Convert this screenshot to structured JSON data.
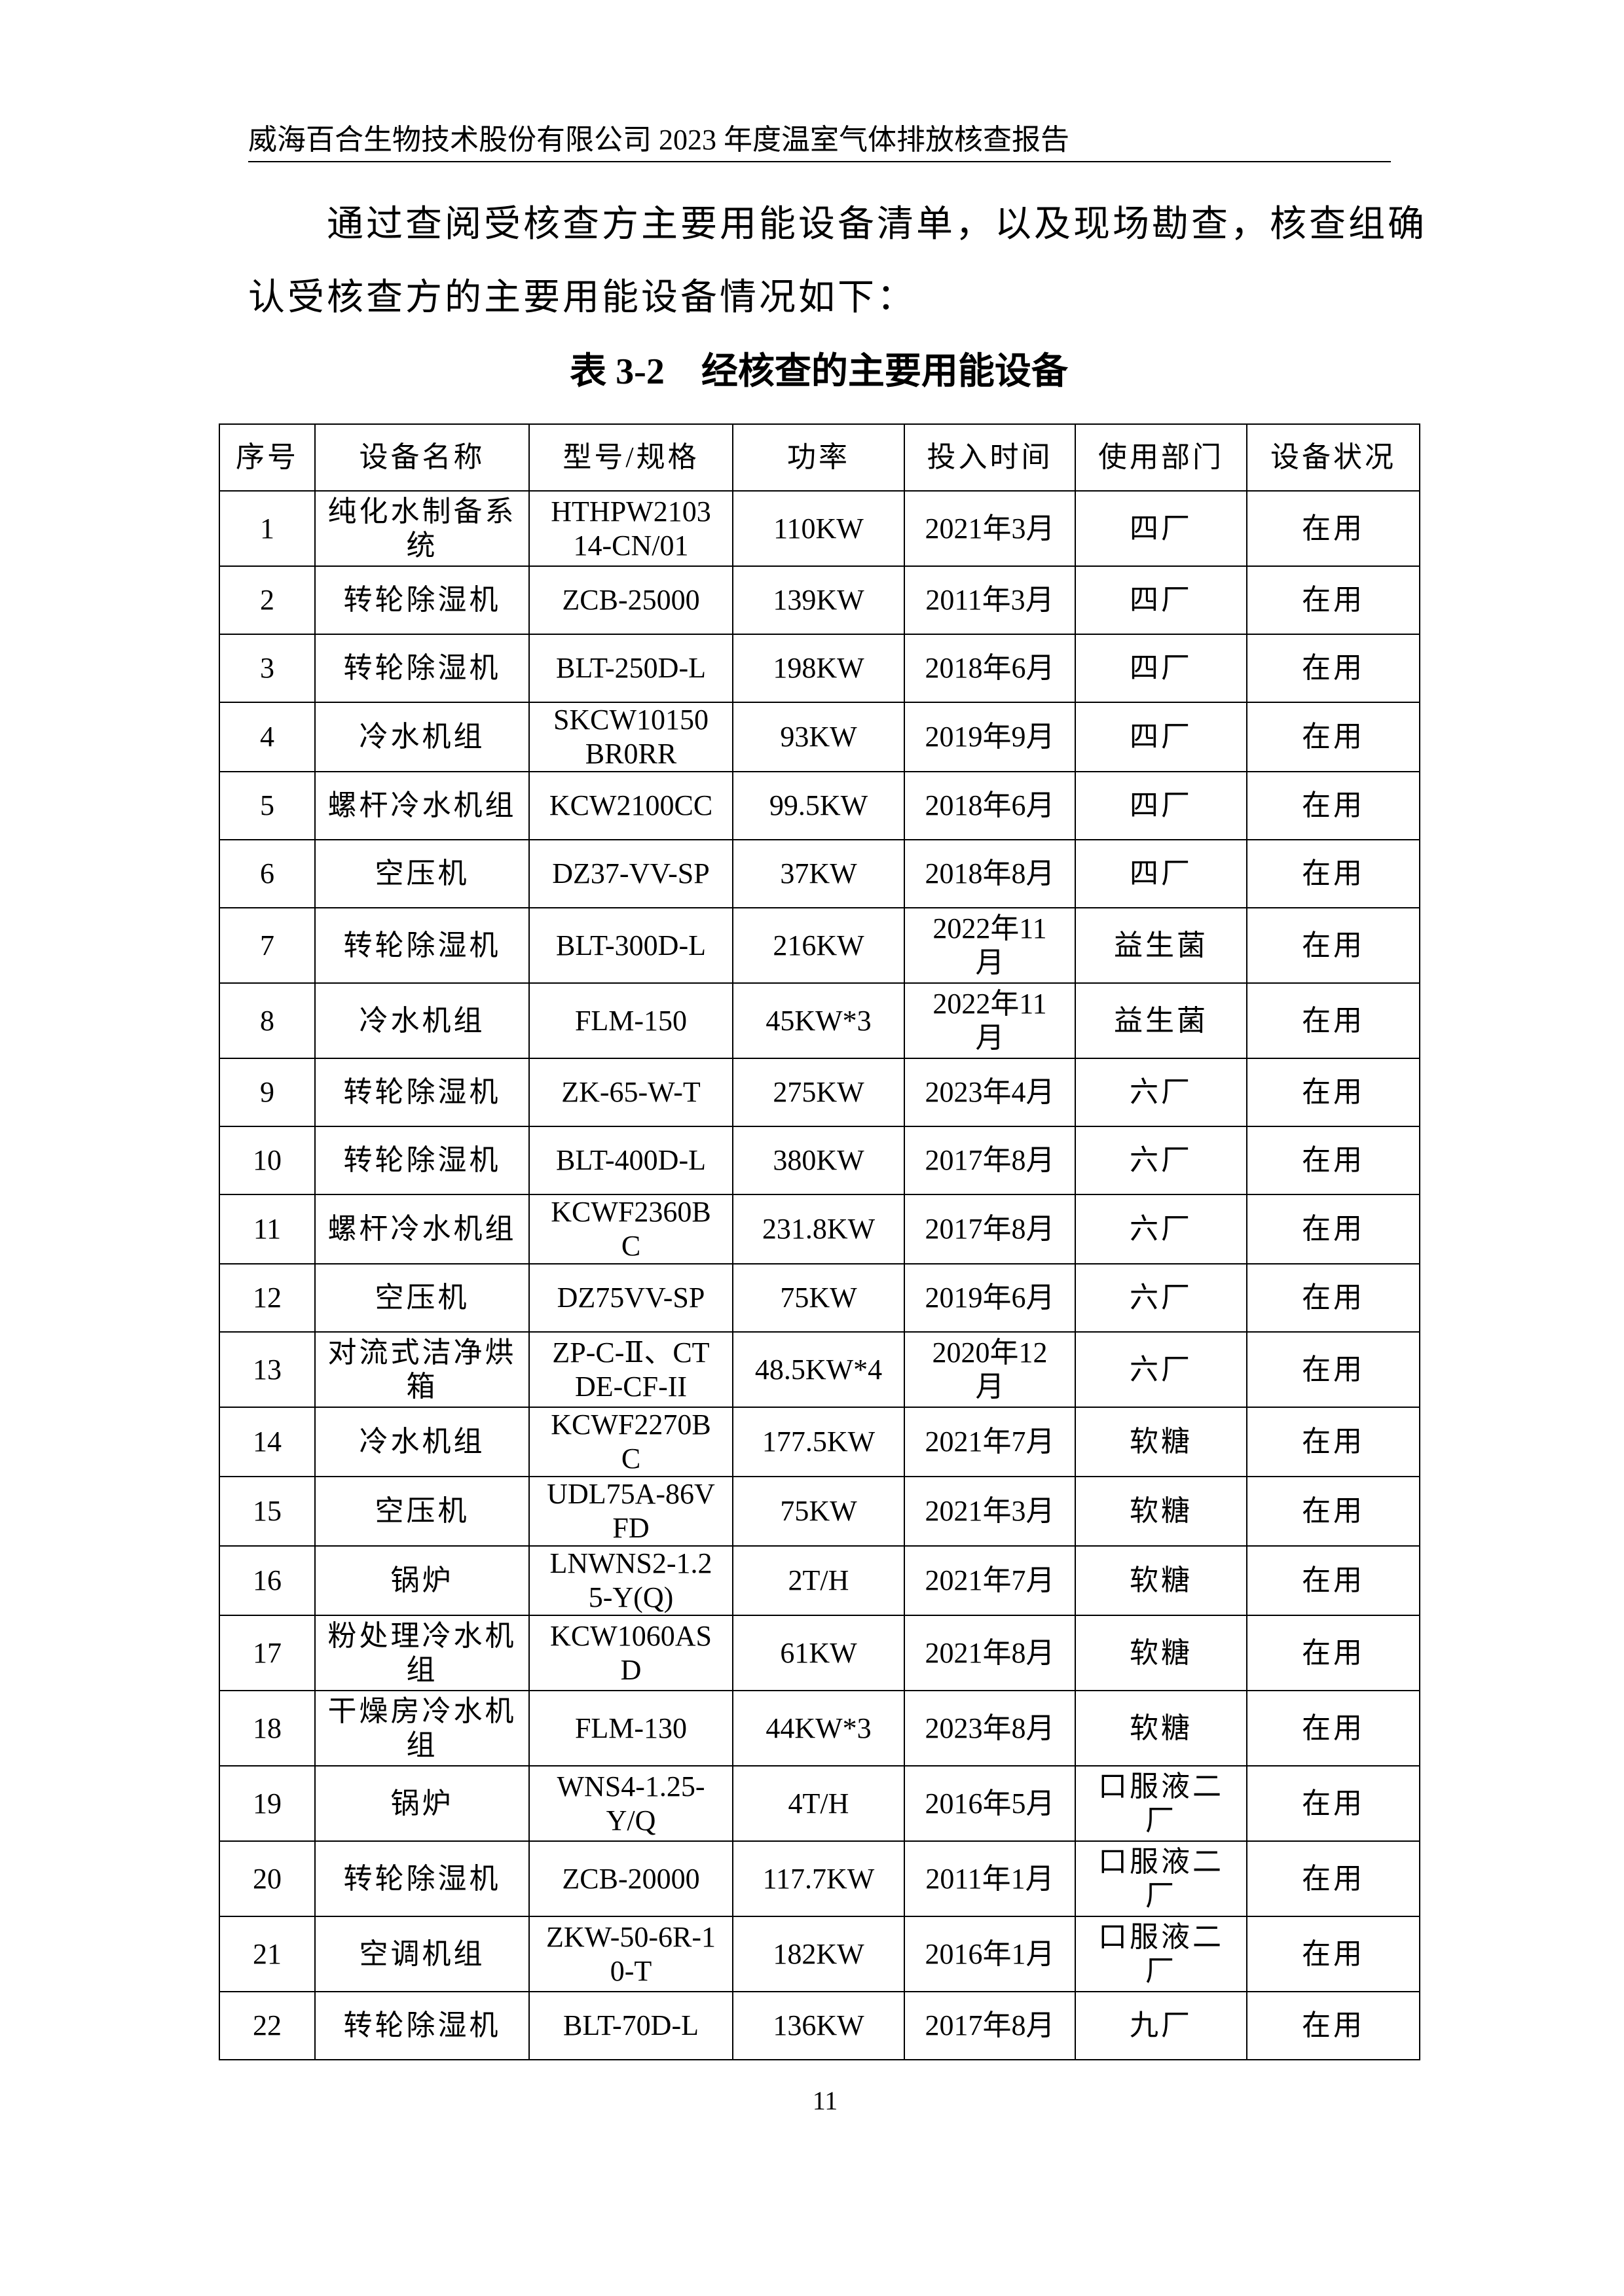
{
  "header": {
    "title": "威海百合生物技术股份有限公司 2023 年度温室气体排放核查报告"
  },
  "intro": {
    "line1": "通过查阅受核查方主要用能设备清单，以及现场勘查，核查组确",
    "line2": "认受核查方的主要用能设备情况如下："
  },
  "table_title": "表 3-2　经核查的主要用能设备",
  "table": {
    "headers": [
      "序号",
      "设备名称",
      "型号/规格",
      "功率",
      "投入时间",
      "使用部门",
      "设备状况"
    ],
    "rows": [
      [
        "1",
        "纯化水制备系统",
        "HTHPW210314-CN/01",
        "110KW",
        "2021年3月",
        "四厂",
        "在用"
      ],
      [
        "2",
        "转轮除湿机",
        "ZCB-25000",
        "139KW",
        "2011年3月",
        "四厂",
        "在用"
      ],
      [
        "3",
        "转轮除湿机",
        "BLT-250D-L",
        "198KW",
        "2018年6月",
        "四厂",
        "在用"
      ],
      [
        "4",
        "冷水机组",
        "SKCW10150BR0RR",
        "93KW",
        "2019年9月",
        "四厂",
        "在用"
      ],
      [
        "5",
        "螺杆冷水机组",
        "KCW2100CC",
        "99.5KW",
        "2018年6月",
        "四厂",
        "在用"
      ],
      [
        "6",
        "空压机",
        "DZ37-VV-SP",
        "37KW",
        "2018年8月",
        "四厂",
        "在用"
      ],
      [
        "7",
        "转轮除湿机",
        "BLT-300D-L",
        "216KW",
        "2022年11月",
        "益生菌",
        "在用"
      ],
      [
        "8",
        "冷水机组",
        "FLM-150",
        "45KW*3",
        "2022年11月",
        "益生菌",
        "在用"
      ],
      [
        "9",
        "转轮除湿机",
        "ZK-65-W-T",
        "275KW",
        "2023年4月",
        "六厂",
        "在用"
      ],
      [
        "10",
        "转轮除湿机",
        "BLT-400D-L",
        "380KW",
        "2017年8月",
        "六厂",
        "在用"
      ],
      [
        "11",
        "螺杆冷水机组",
        "KCWF2360BC",
        "231.8KW",
        "2017年8月",
        "六厂",
        "在用"
      ],
      [
        "12",
        "空压机",
        "DZ75VV-SP",
        "75KW",
        "2019年6月",
        "六厂",
        "在用"
      ],
      [
        "13",
        "对流式洁净烘箱",
        "ZP-C-Ⅱ、CTDE-CF-II",
        "48.5KW*4",
        "2020年12月",
        "六厂",
        "在用"
      ],
      [
        "14",
        "冷水机组",
        "KCWF2270BC",
        "177.5KW",
        "2021年7月",
        "软糖",
        "在用"
      ],
      [
        "15",
        "空压机",
        "UDL75A-86VFD",
        "75KW",
        "2021年3月",
        "软糖",
        "在用"
      ],
      [
        "16",
        "锅炉",
        "LNWNS2-1.25-Y(Q)",
        "2T/H",
        "2021年7月",
        "软糖",
        "在用"
      ],
      [
        "17",
        "粉处理冷水机组",
        "KCW1060ASD",
        "61KW",
        "2021年8月",
        "软糖",
        "在用"
      ],
      [
        "18",
        "干燥房冷水机组",
        "FLM-130",
        "44KW*3",
        "2023年8月",
        "软糖",
        "在用"
      ],
      [
        "19",
        "锅炉",
        "WNS4-1.25-Y/Q",
        "4T/H",
        "2016年5月",
        "口服液二厂",
        "在用"
      ],
      [
        "20",
        "转轮除湿机",
        "ZCB-20000",
        "117.7KW",
        "2011年1月",
        "口服液二厂",
        "在用"
      ],
      [
        "21",
        "空调机组",
        "ZKW-50-6R-10-T",
        "182KW",
        "2016年1月",
        "口服液二厂",
        "在用"
      ],
      [
        "22",
        "转轮除湿机",
        "BLT-70D-L",
        "136KW",
        "2017年8月",
        "九厂",
        "在用"
      ]
    ]
  },
  "footer": {
    "page_number": "11"
  }
}
